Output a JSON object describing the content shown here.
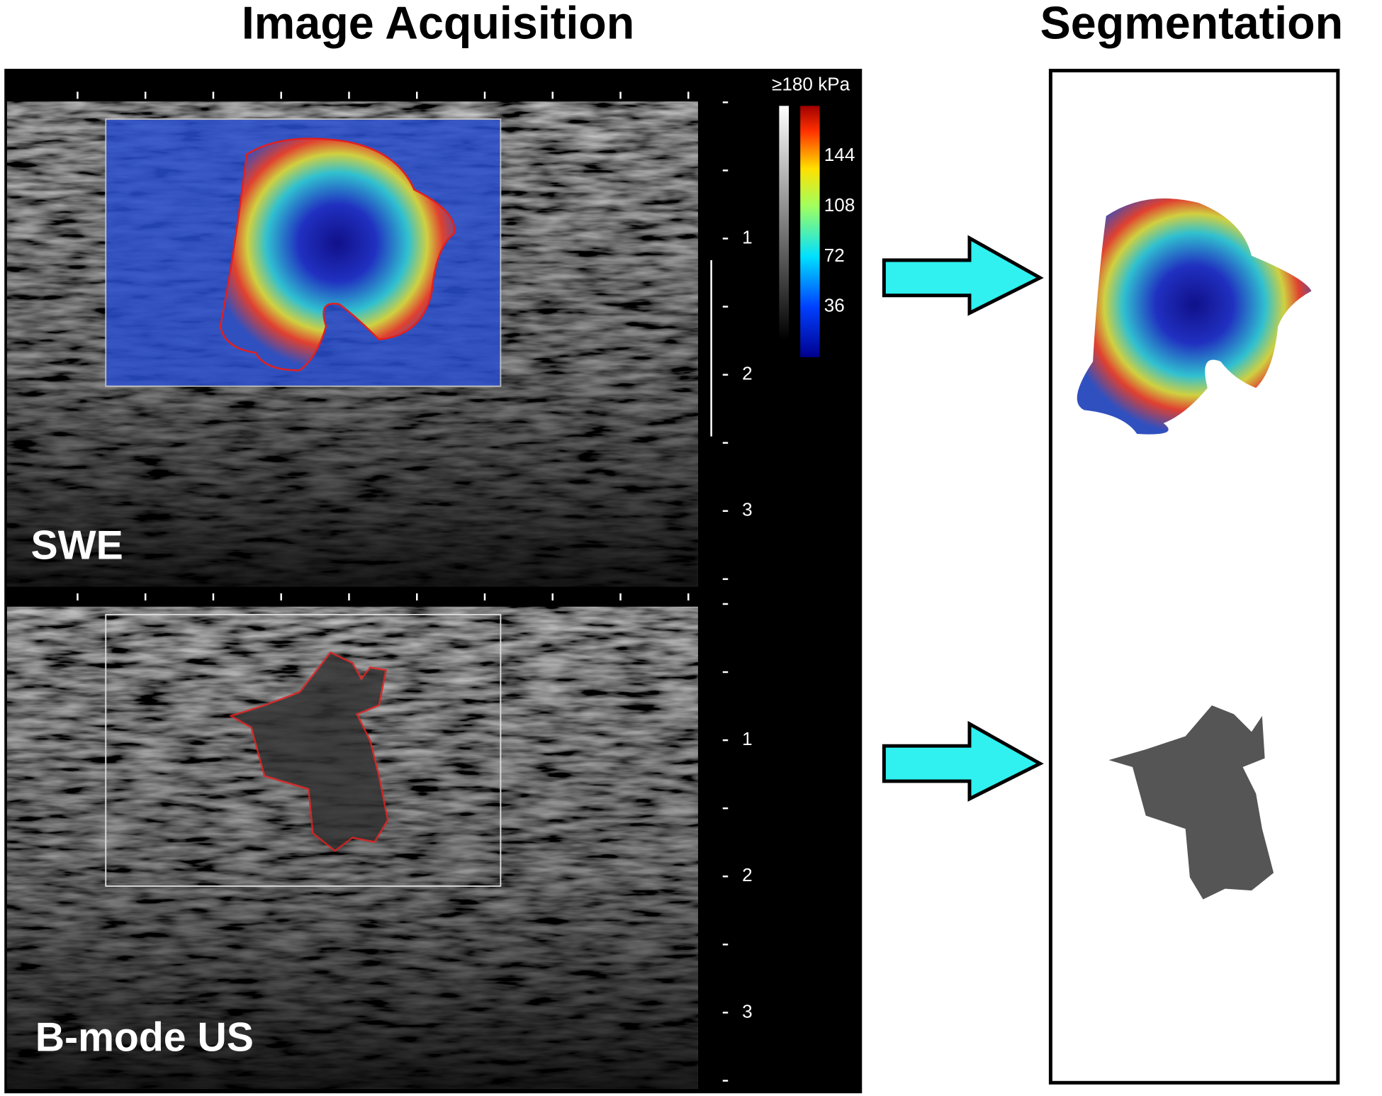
{
  "header": {
    "left_title": "Image Acquisition",
    "right_title": "Segmentation"
  },
  "panels": [
    {
      "label": "SWE",
      "depth_ticks": [
        1,
        2,
        3
      ]
    },
    {
      "label": "B-mode US",
      "depth_ticks": [
        1,
        2,
        3
      ]
    }
  ],
  "colorbar": {
    "title": "≥180 kPa",
    "ticks": [
      144,
      108,
      72,
      36
    ]
  }
}
